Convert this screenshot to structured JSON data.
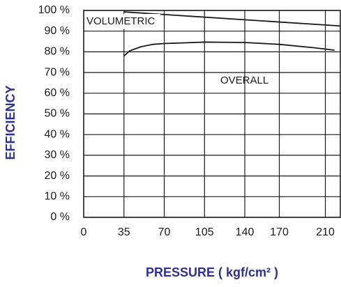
{
  "chart_data": {
    "type": "line",
    "xlabel": "PRESSURE ( kgf/cm² )",
    "ylabel": "EFFICIENCY",
    "annotations": [
      "VOLUMETRIC",
      "OVERALL"
    ],
    "series": [
      {
        "name": "VOLUMETRIC",
        "color": "#1a1a1a",
        "x": [
          35,
          223
        ],
        "values": [
          99.3,
          92.5
        ]
      },
      {
        "name": "OVERALL",
        "color": "#1a1a1a",
        "x": [
          35,
          40,
          50,
          60,
          70,
          105,
          140,
          170,
          200,
          218
        ],
        "values": [
          78,
          80.5,
          82.5,
          83.6,
          84,
          84.7,
          84.5,
          83.6,
          82,
          80.8
        ]
      }
    ],
    "xlim": [
      0,
      223
    ],
    "xticks": [
      0,
      35,
      70,
      105,
      140,
      170,
      210
    ],
    "ylim": [
      0,
      100
    ],
    "yticks": [
      {
        "value": 0,
        "label": "0 %"
      },
      {
        "value": 10,
        "label": "10 %"
      },
      {
        "value": 20,
        "label": "20 %"
      },
      {
        "value": 30,
        "label": "30 %"
      },
      {
        "value": 40,
        "label": "40 %"
      },
      {
        "value": 50,
        "label": "50 %"
      },
      {
        "value": 60,
        "label": "60 %"
      },
      {
        "value": 70,
        "label": "70 %"
      },
      {
        "value": 80,
        "label": "80 %"
      },
      {
        "value": 90,
        "label": "90 %"
      },
      {
        "value": 100,
        "label": "100 %"
      }
    ],
    "grid": true
  }
}
